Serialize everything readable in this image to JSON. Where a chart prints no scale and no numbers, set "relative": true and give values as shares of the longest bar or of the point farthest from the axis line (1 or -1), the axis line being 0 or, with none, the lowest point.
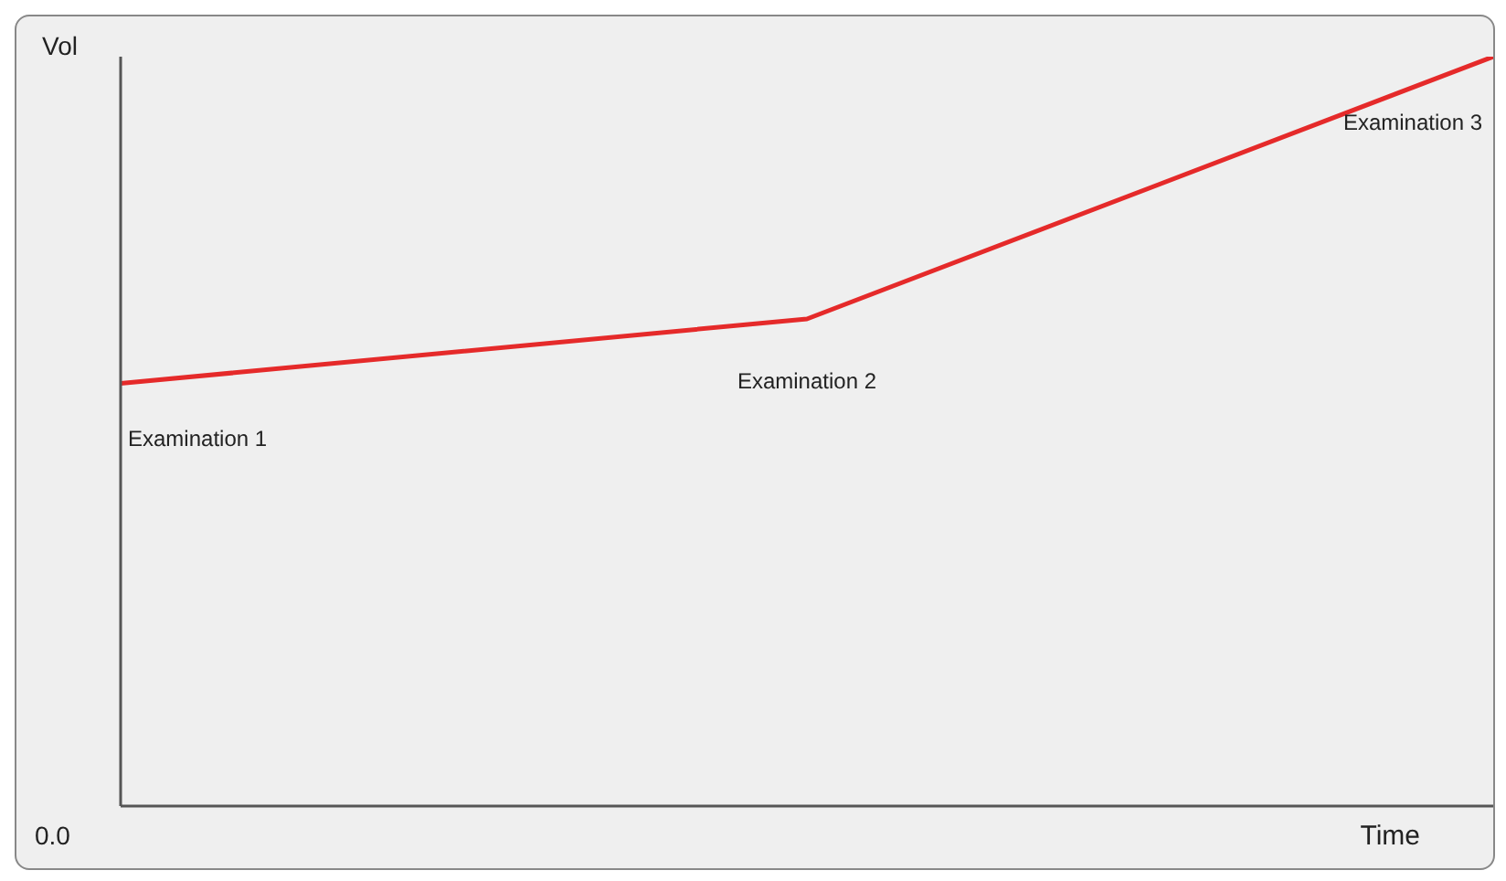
{
  "chart_data": {
    "type": "line",
    "xlabel": "Time",
    "ylabel": "Vol",
    "relative": true,
    "categories": [
      "Examination 1",
      "Examination 2",
      "Examination 3"
    ],
    "series": [
      {
        "color": "#e52a2a",
        "values": [
          0.564,
          0.65,
          1
        ]
      }
    ],
    "annotations": [
      "0.0"
    ],
    "marker": "none",
    "line_style": "solid"
  }
}
